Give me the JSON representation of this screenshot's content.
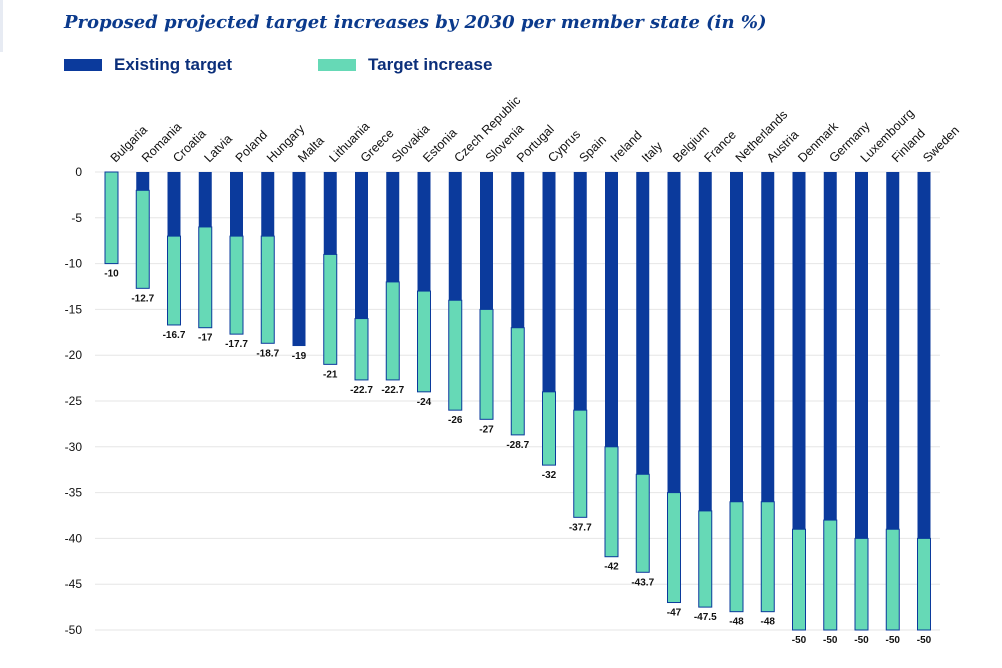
{
  "chart_data": {
    "type": "bar",
    "title": "Proposed projected target increases by 2030 per member state (in %)",
    "xlabel": "",
    "ylabel": "",
    "ylim": [
      -50,
      0
    ],
    "yticks": [
      0,
      -5,
      -10,
      -15,
      -20,
      -25,
      -30,
      -35,
      -40,
      -45,
      -50
    ],
    "grid": true,
    "legend": "top-left",
    "categories": [
      "Bulgaria",
      "Romania",
      "Croatia",
      "Latvia",
      "Poland",
      "Hungary",
      "Malta",
      "Lithuania",
      "Greece",
      "Slovakia",
      "Estonia",
      "Czech Republic",
      "Slovenia",
      "Portugal",
      "Cyprus",
      "Spain",
      "Ireland",
      "Italy",
      "Belgium",
      "France",
      "Netherlands",
      "Austria",
      "Denmark",
      "Germany",
      "Luxembourg",
      "Finland",
      "Sweden"
    ],
    "series": [
      {
        "name": "Existing target",
        "color": "#0b3a9c",
        "values": [
          0,
          -2,
          -7,
          -6,
          -7,
          -7,
          -19,
          -9,
          -16,
          -12,
          -13,
          -14,
          -15,
          -17,
          -24,
          -26,
          -30,
          -33,
          -35,
          -37,
          -36,
          -36,
          -39,
          -38,
          -40,
          -39,
          -40
        ]
      },
      {
        "name": "Target increase",
        "color": "#66d9b6",
        "values": [
          -10,
          -10.7,
          -9.7,
          -11,
          -10.7,
          -11.7,
          0,
          -12,
          -6.7,
          -10.7,
          -11,
          -12,
          -12,
          -11.7,
          -8,
          -11.7,
          -12,
          -10.7,
          -12,
          -10.5,
          -12,
          -12,
          -11,
          -12,
          -10,
          -11,
          -10
        ]
      }
    ],
    "totals": [
      "-10",
      "-12.7",
      "-16.7",
      "-17",
      "-17.7",
      "-18.7",
      "-19",
      "-21",
      "-22.7",
      "-22.7",
      "-24",
      "-26",
      "-27",
      "-28.7",
      "-32",
      "-37.7",
      "-42",
      "-43.7",
      "-47",
      "-47.5",
      "-48",
      "-48",
      "-50",
      "-50",
      "-50",
      "-50",
      "-50"
    ]
  }
}
